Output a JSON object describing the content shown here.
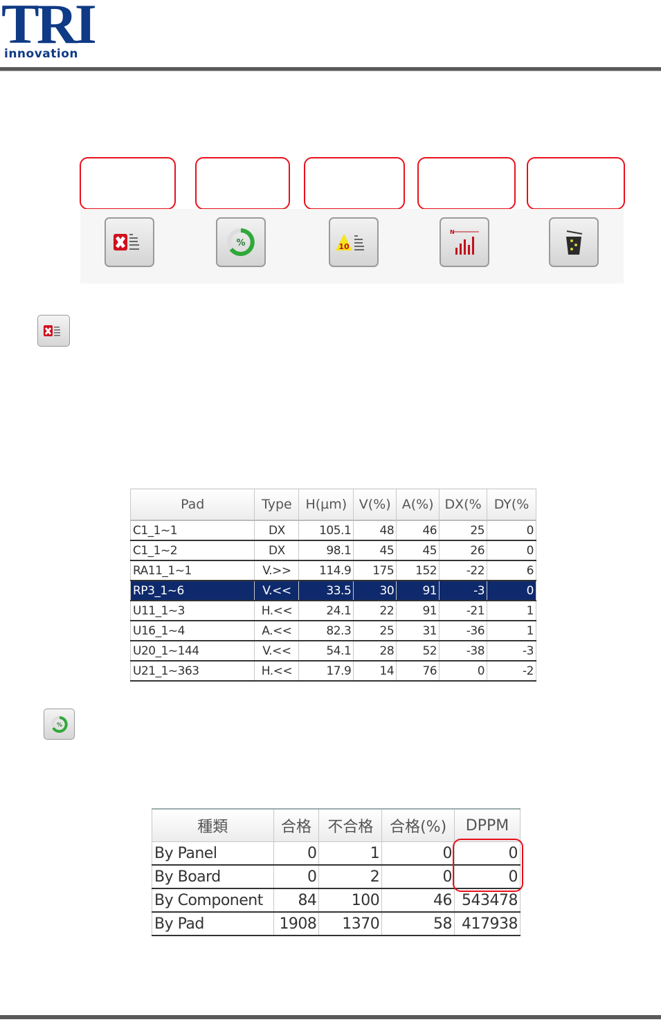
{
  "header": {
    "logo_main": "TRI",
    "logo_sub": "innovation"
  },
  "toolbar": {
    "buttons": [
      {
        "icon": "defect-list-icon"
      },
      {
        "icon": "yield-percent-icon"
      },
      {
        "icon": "top10-icon"
      },
      {
        "icon": "chart-icon"
      },
      {
        "icon": "trash-icon"
      }
    ]
  },
  "section1": {
    "icon": "defect-list-icon"
  },
  "pad_table": {
    "headers": [
      "Pad",
      "Type",
      "H(µm)",
      "V(%)",
      "A(%)",
      "DX(%",
      "DY(%"
    ],
    "rows": [
      [
        "C1_1~1",
        "DX",
        "105.1",
        "48",
        "46",
        "25",
        "0"
      ],
      [
        "C1_1~2",
        "DX",
        "98.1",
        "45",
        "45",
        "26",
        "0"
      ],
      [
        "RA11_1~1",
        "V.>>",
        "114.9",
        "175",
        "152",
        "-22",
        "6"
      ],
      [
        "RP3_1~6",
        "V.<<",
        "33.5",
        "30",
        "91",
        "-3",
        "0"
      ],
      [
        "U11_1~3",
        "H.<<",
        "24.1",
        "22",
        "91",
        "-21",
        "1"
      ],
      [
        "U16_1~4",
        "A.<<",
        "82.3",
        "25",
        "31",
        "-36",
        "1"
      ],
      [
        "U20_1~144",
        "V.<<",
        "54.1",
        "28",
        "52",
        "-38",
        "-3"
      ],
      [
        "U21_1~363",
        "H.<<",
        "17.9",
        "14",
        "76",
        "0",
        "-2"
      ]
    ],
    "selected_row": 3,
    "selected_color": "#0f2a6c"
  },
  "section2": {
    "icon": "yield-percent-icon"
  },
  "yield_table": {
    "headers": [
      "種類",
      "合格",
      "不合格",
      "合格(%)",
      "DPPM"
    ],
    "rows": [
      [
        "By Panel",
        "0",
        "1",
        "0",
        "0"
      ],
      [
        "By Board",
        "0",
        "2",
        "0",
        "0"
      ],
      [
        "By Component",
        "84",
        "100",
        "46",
        "543478"
      ],
      [
        "By Pad",
        "1908",
        "1370",
        "58",
        "417938"
      ]
    ]
  },
  "colors": {
    "brand": "#0f3a85",
    "highlight": "#e8101a"
  }
}
